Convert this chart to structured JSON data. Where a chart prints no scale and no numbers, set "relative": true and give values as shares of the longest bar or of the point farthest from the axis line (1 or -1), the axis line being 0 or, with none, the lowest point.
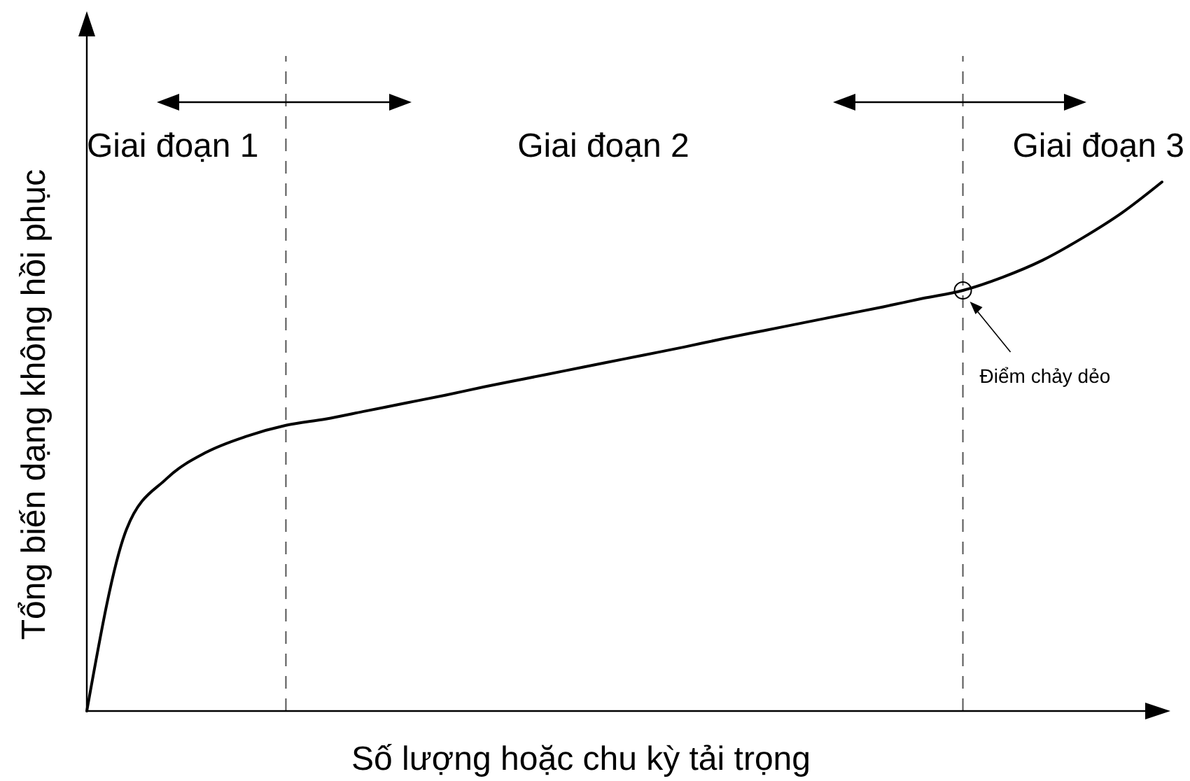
{
  "chart_data": {
    "type": "line",
    "relative": true,
    "xlabel": "Số lượng hoặc chu kỳ tải trọng",
    "ylabel": "Tổng biến dạng không hồi phục",
    "categories": [
      null,
      null,
      null,
      null,
      null,
      null,
      null,
      null,
      null,
      null,
      null,
      null,
      null,
      null,
      null,
      null,
      null,
      null,
      null,
      null,
      null,
      null,
      null,
      null,
      null,
      null,
      null,
      null
    ],
    "series": [
      {
        "color": "#000000",
        "values": [
          0,
          0.344,
          0.439,
          0.489,
          0.519,
          0.54,
          0.552,
          0.567,
          0.582,
          0.597,
          0.613,
          0.628,
          0.643,
          0.658,
          0.673,
          0.688,
          0.704,
          0.719,
          0.734,
          0.749,
          0.764,
          0.78,
          0.795,
          0.82,
          0.852,
          0.894,
          0.942,
          1
        ]
      }
    ],
    "annotations": [
      "Giai đoạn 1",
      "Giai đoạn 2",
      "Giai đoạn 3",
      "Điểm chảy dẻo"
    ],
    "marker": "none",
    "line_style": "solid"
  }
}
